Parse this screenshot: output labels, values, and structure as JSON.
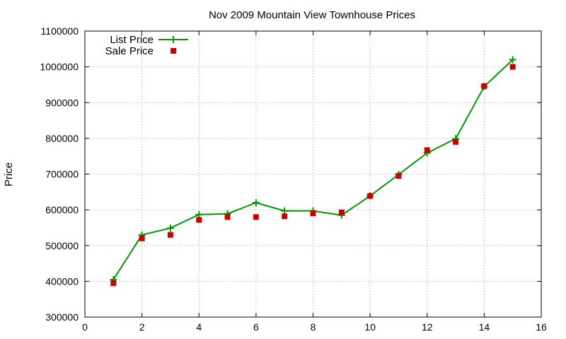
{
  "chart_data": {
    "type": "line",
    "title": "Nov 2009 Mountain View Townhouse Prices",
    "xlabel": "",
    "ylabel": "Price",
    "xlim": [
      0,
      16
    ],
    "ylim": [
      300000,
      1100000
    ],
    "xticks": [
      0,
      2,
      4,
      6,
      8,
      10,
      12,
      14,
      16
    ],
    "yticks": [
      300000,
      400000,
      500000,
      600000,
      700000,
      800000,
      900000,
      1000000,
      1100000
    ],
    "grid": true,
    "legend_position": "top-left",
    "x": [
      1,
      2,
      3,
      4,
      5,
      6,
      7,
      8,
      9,
      10,
      11,
      12,
      13,
      14,
      15
    ],
    "series": [
      {
        "name": "List Price",
        "style": "linespoints",
        "marker": "plus",
        "color": "#009900",
        "values": [
          405000,
          530000,
          549000,
          587000,
          589000,
          620000,
          597000,
          597000,
          585000,
          639000,
          699000,
          759000,
          799000,
          945000,
          1020000
        ]
      },
      {
        "name": "Sale Price",
        "style": "points",
        "marker": "square",
        "color": "#cc0000",
        "values": [
          395000,
          520000,
          530000,
          572000,
          580000,
          580000,
          582000,
          590000,
          593000,
          639000,
          695000,
          767000,
          790000,
          946000,
          1000000
        ]
      }
    ]
  }
}
